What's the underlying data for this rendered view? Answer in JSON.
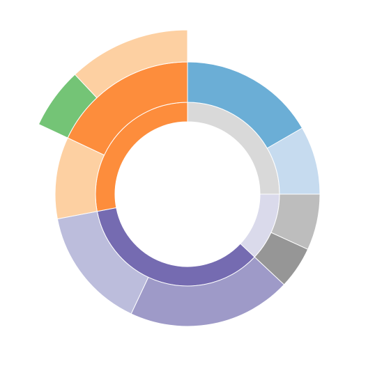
{
  "chart_data": {
    "type": "sunburst",
    "title": "",
    "ring_palette": [
      "#d9d9d9",
      "#fd8d3c",
      "#fdd0a2",
      "#a1d99b"
    ],
    "segments": [
      {
        "id": "root-center",
        "parent": null,
        "color": "#ffffff",
        "value": 100
      },
      {
        "id": "grey",
        "parent": "root-center",
        "color": "#d9d9d9",
        "value": 25
      },
      {
        "id": "lavender",
        "parent": "root-center",
        "color": "#dadaeb",
        "value": 12
      },
      {
        "id": "purple",
        "parent": "root-center",
        "color": "#756bb1",
        "value": 35
      },
      {
        "id": "orange",
        "parent": "root-center",
        "color": "#fd8d3c",
        "value": 28
      },
      {
        "id": "orange-left",
        "parent": "orange",
        "color": "#fdd0a2",
        "value": 10
      },
      {
        "id": "orange-right",
        "parent": "orange",
        "color": "#fd8d3c",
        "value": 18
      },
      {
        "id": "blue",
        "parent": "grey",
        "color": "#6baed6",
        "value": 10
      },
      {
        "id": "light-blue",
        "parent": "grey",
        "color": "#c6dbef",
        "value": 5
      },
      {
        "id": "silver",
        "parent": "lavender",
        "color": "#bdbdbd",
        "value": 4
      },
      {
        "id": "dark-grey",
        "parent": "lavender",
        "color": "#969696",
        "value": 3
      },
      {
        "id": "violet-deep",
        "parent": "purple",
        "color": "#9e9ac8",
        "value": 20
      },
      {
        "id": "violet-light",
        "parent": "purple",
        "color": "#bcbddc",
        "value": 15
      },
      {
        "id": "green",
        "parent": "orange-right",
        "color": "#74c476",
        "value": 6
      },
      {
        "id": "peach",
        "parent": "orange-right",
        "color": "#fdd0a2",
        "value": 12
      }
    ]
  }
}
